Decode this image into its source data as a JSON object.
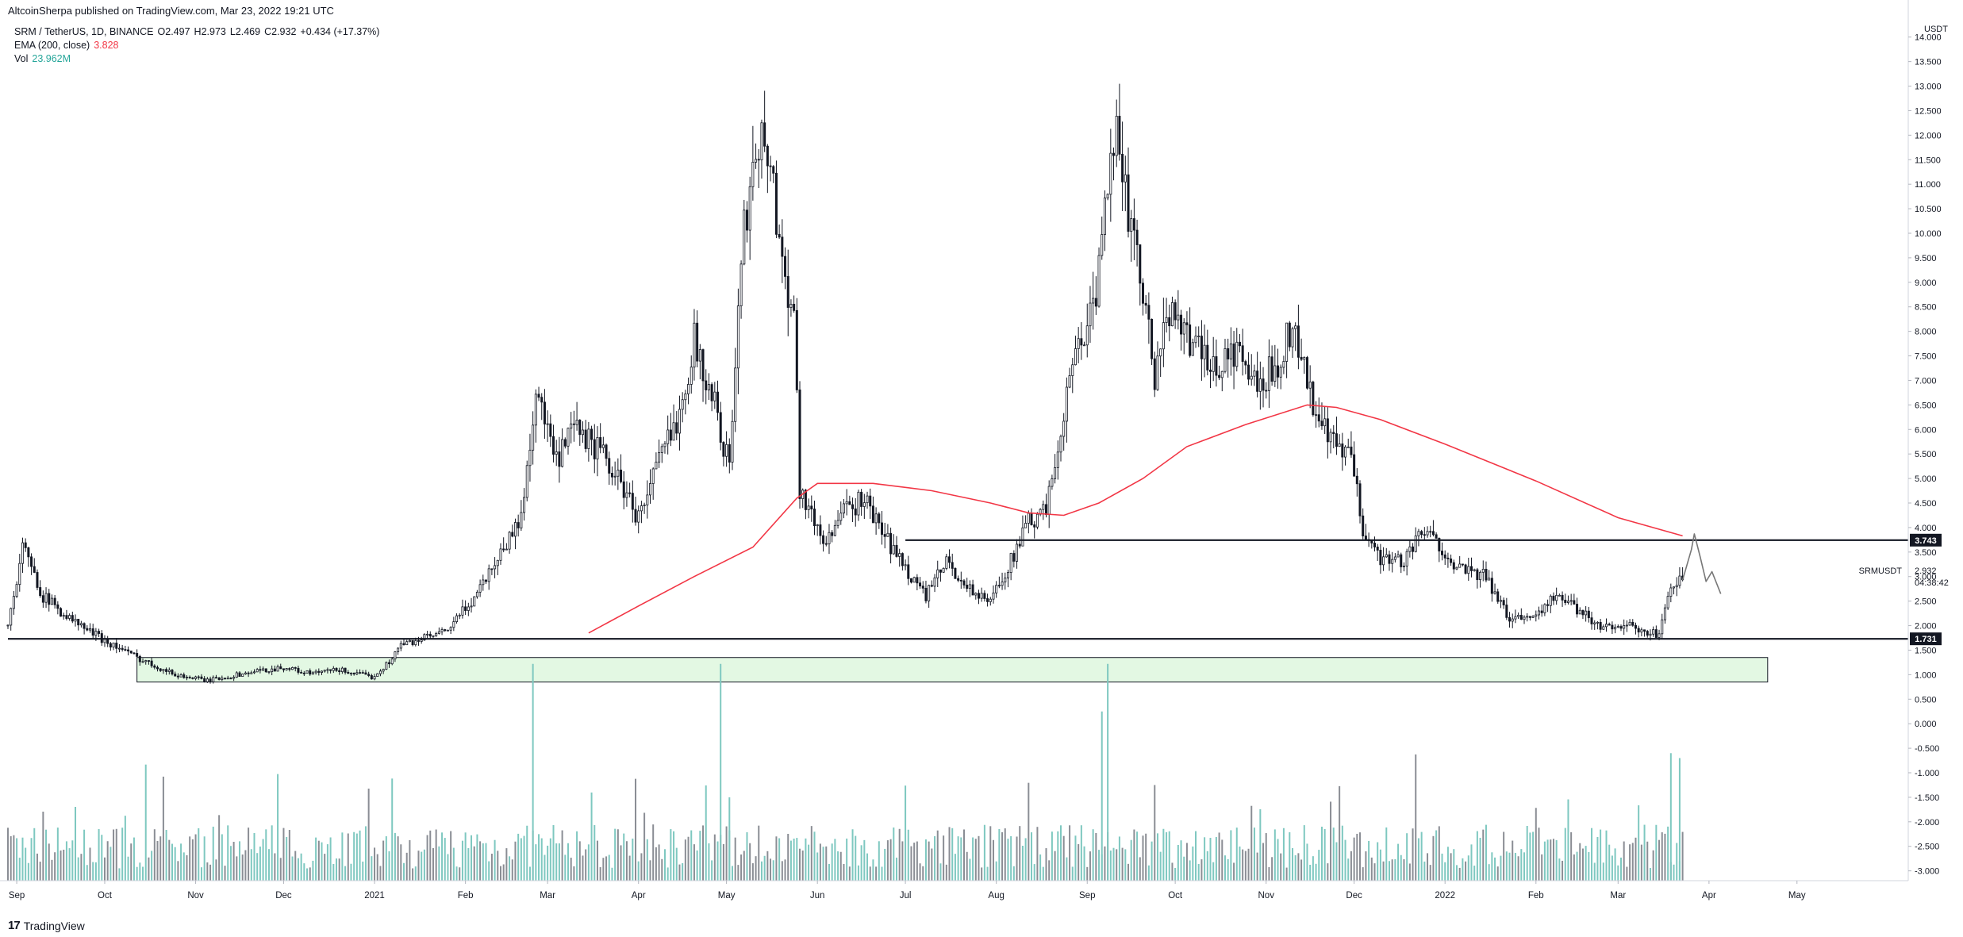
{
  "header": {
    "publish_line": "AltcoinSherpa published on TradingView.com, Mar 23, 2022 19:21 UTC"
  },
  "legend": {
    "symbol": "SRM / TetherUS, 1D, BINANCE",
    "open_label": "O",
    "open": "2.497",
    "high_label": "H",
    "high": "2.973",
    "low_label": "L",
    "low": "2.469",
    "close_label": "C",
    "close": "2.932",
    "change": "+0.434 (+17.37%)",
    "ema_label": "EMA (200, close)",
    "ema_value": "3.828",
    "vol_label": "Vol",
    "vol_value": "23.962M"
  },
  "footer": {
    "brand": "TradingView"
  },
  "colors": {
    "candle": "#131722",
    "ema": "#f23645",
    "volume_up": "#7ec8c0",
    "volume_down": "#8a8d94",
    "box_fill": "#e3f8e3",
    "projection": "#777777"
  },
  "chart_data": {
    "type": "candlestick",
    "symbol": "SRM / TetherUS, 1D, BINANCE",
    "yunit": "USDT",
    "ylim": [
      -3.2,
      14.4
    ],
    "y_ticks": [
      "14.000",
      "13.500",
      "13.000",
      "12.500",
      "12.000",
      "11.500",
      "11.000",
      "10.500",
      "10.000",
      "9.500",
      "9.000",
      "8.500",
      "8.000",
      "7.500",
      "7.000",
      "6.500",
      "6.000",
      "5.500",
      "5.000",
      "4.500",
      "4.000",
      "3.500",
      "3.000",
      "2.500",
      "2.000",
      "1.500",
      "1.000",
      "0.500",
      "0.000",
      "-0.500",
      "-1.000",
      "-1.500",
      "-2.000",
      "-2.500",
      "-3.000"
    ],
    "x_ticks": [
      {
        "label": "Sep",
        "date": "2020-09-01"
      },
      {
        "label": "Oct",
        "date": "2020-10-01"
      },
      {
        "label": "Nov",
        "date": "2020-11-01"
      },
      {
        "label": "Dec",
        "date": "2020-12-01"
      },
      {
        "label": "2021",
        "date": "2021-01-01"
      },
      {
        "label": "Feb",
        "date": "2021-02-01"
      },
      {
        "label": "Mar",
        "date": "2021-03-01"
      },
      {
        "label": "Apr",
        "date": "2021-04-01"
      },
      {
        "label": "May",
        "date": "2021-05-01"
      },
      {
        "label": "Jun",
        "date": "2021-06-01"
      },
      {
        "label": "Jul",
        "date": "2021-07-01"
      },
      {
        "label": "Aug",
        "date": "2021-08-01"
      },
      {
        "label": "Sep",
        "date": "2021-09-01"
      },
      {
        "label": "Oct",
        "date": "2021-10-01"
      },
      {
        "label": "Nov",
        "date": "2021-11-01"
      },
      {
        "label": "Dec",
        "date": "2021-12-01"
      },
      {
        "label": "2022",
        "date": "2022-01-01"
      },
      {
        "label": "Feb",
        "date": "2022-02-01"
      },
      {
        "label": "Mar",
        "date": "2022-03-01"
      },
      {
        "label": "Apr",
        "date": "2022-04-01"
      },
      {
        "label": "May",
        "date": "2022-05-01"
      }
    ],
    "price_path": [
      [
        "2020-08-29",
        2.0
      ],
      [
        "2020-09-03",
        3.6
      ],
      [
        "2020-09-10",
        2.6
      ],
      [
        "2020-09-20",
        2.1
      ],
      [
        "2020-10-01",
        1.7
      ],
      [
        "2020-10-12",
        1.35
      ],
      [
        "2020-10-25",
        1.0
      ],
      [
        "2020-11-05",
        0.88
      ],
      [
        "2020-11-20",
        1.05
      ],
      [
        "2020-12-01",
        1.15
      ],
      [
        "2020-12-10",
        1.02
      ],
      [
        "2020-12-20",
        1.1
      ],
      [
        "2020-12-31",
        0.95
      ],
      [
        "2021-01-05",
        1.2
      ],
      [
        "2021-01-10",
        1.6
      ],
      [
        "2021-01-18",
        1.75
      ],
      [
        "2021-01-25",
        1.85
      ],
      [
        "2021-02-03",
        2.5
      ],
      [
        "2021-02-12",
        3.4
      ],
      [
        "2021-02-20",
        4.2
      ],
      [
        "2021-02-25",
        6.8
      ],
      [
        "2021-03-04",
        5.3
      ],
      [
        "2021-03-10",
        6.0
      ],
      [
        "2021-03-18",
        5.6
      ],
      [
        "2021-03-25",
        5.0
      ],
      [
        "2021-04-01",
        4.2
      ],
      [
        "2021-04-07",
        5.2
      ],
      [
        "2021-04-14",
        6.2
      ],
      [
        "2021-04-20",
        7.8
      ],
      [
        "2021-04-27",
        6.5
      ],
      [
        "2021-05-02",
        5.2
      ],
      [
        "2021-05-06",
        9.5
      ],
      [
        "2021-05-11",
        12.0
      ],
      [
        "2021-05-16",
        11.5
      ],
      [
        "2021-05-20",
        9.3
      ],
      [
        "2021-05-24",
        8.5
      ],
      [
        "2021-05-26",
        4.8
      ],
      [
        "2021-06-03",
        3.7
      ],
      [
        "2021-06-10",
        4.3
      ],
      [
        "2021-06-17",
        4.6
      ],
      [
        "2021-06-24",
        3.8
      ],
      [
        "2021-07-02",
        3.1
      ],
      [
        "2021-07-08",
        2.6
      ],
      [
        "2021-07-15",
        3.3
      ],
      [
        "2021-07-22",
        2.8
      ],
      [
        "2021-07-29",
        2.45
      ],
      [
        "2021-08-05",
        3.2
      ],
      [
        "2021-08-12",
        4.1
      ],
      [
        "2021-08-18",
        4.3
      ],
      [
        "2021-08-24",
        6.4
      ],
      [
        "2021-08-29",
        7.8
      ],
      [
        "2021-09-04",
        8.6
      ],
      [
        "2021-09-08",
        10.8
      ],
      [
        "2021-09-11",
        12.8
      ],
      [
        "2021-09-15",
        10.2
      ],
      [
        "2021-09-20",
        8.8
      ],
      [
        "2021-09-24",
        7.0
      ],
      [
        "2021-09-30",
        8.7
      ],
      [
        "2021-10-06",
        7.8
      ],
      [
        "2021-10-14",
        7.2
      ],
      [
        "2021-10-22",
        7.6
      ],
      [
        "2021-10-29",
        6.8
      ],
      [
        "2021-11-05",
        7.4
      ],
      [
        "2021-11-10",
        8.2
      ],
      [
        "2021-11-16",
        6.7
      ],
      [
        "2021-11-22",
        5.8
      ],
      [
        "2021-11-30",
        5.4
      ],
      [
        "2021-12-04",
        4.0
      ],
      [
        "2021-12-10",
        3.4
      ],
      [
        "2021-12-17",
        3.3
      ],
      [
        "2021-12-25",
        3.9
      ],
      [
        "2021-12-31",
        3.6
      ],
      [
        "2022-01-07",
        3.1
      ],
      [
        "2022-01-15",
        3.0
      ],
      [
        "2022-01-22",
        2.2
      ],
      [
        "2022-01-29",
        2.15
      ],
      [
        "2022-02-08",
        2.6
      ],
      [
        "2022-02-16",
        2.3
      ],
      [
        "2022-02-24",
        1.95
      ],
      [
        "2022-03-03",
        2.05
      ],
      [
        "2022-03-10",
        1.82
      ],
      [
        "2022-03-15",
        1.85
      ],
      [
        "2022-03-19",
        2.8
      ],
      [
        "2022-03-23",
        2.93
      ]
    ],
    "ema_200": [
      [
        "2021-03-15",
        1.85
      ],
      [
        "2021-04-01",
        2.4
      ],
      [
        "2021-04-20",
        3.0
      ],
      [
        "2021-05-10",
        3.6
      ],
      [
        "2021-05-25",
        4.6
      ],
      [
        "2021-06-01",
        4.9
      ],
      [
        "2021-06-20",
        4.9
      ],
      [
        "2021-07-10",
        4.75
      ],
      [
        "2021-07-30",
        4.5
      ],
      [
        "2021-08-12",
        4.3
      ],
      [
        "2021-08-24",
        4.25
      ],
      [
        "2021-09-05",
        4.5
      ],
      [
        "2021-09-20",
        5.0
      ],
      [
        "2021-10-05",
        5.65
      ],
      [
        "2021-10-25",
        6.1
      ],
      [
        "2021-11-15",
        6.5
      ],
      [
        "2021-11-25",
        6.45
      ],
      [
        "2021-12-10",
        6.2
      ],
      [
        "2022-01-01",
        5.7
      ],
      [
        "2022-02-01",
        4.95
      ],
      [
        "2022-03-01",
        4.2
      ],
      [
        "2022-03-23",
        3.83
      ]
    ],
    "horizontal_lines": [
      {
        "value": 3.743,
        "label": "3.743",
        "from": "2021-07-01"
      },
      {
        "value": 1.731,
        "label": "1.731",
        "from": "2020-08-29"
      }
    ],
    "zone": {
      "from": "2020-10-12",
      "to": "2022-04-21",
      "low": 0.85,
      "high": 1.35
    },
    "projection": [
      [
        "2022-03-23",
        2.93
      ],
      [
        "2022-03-26",
        3.55
      ],
      [
        "2022-03-27",
        3.87
      ],
      [
        "2022-03-29",
        3.4
      ],
      [
        "2022-03-31",
        2.9
      ],
      [
        "2022-04-02",
        3.1
      ],
      [
        "2022-04-05",
        2.65
      ]
    ],
    "last_price": {
      "symbol": "SRMUSDT",
      "price": "2.932",
      "countdown": "04:38:42"
    },
    "volume_spikes": [
      [
        "2021-02-24",
        1.22
      ],
      [
        "2021-04-29",
        1.22
      ],
      [
        "2021-09-08",
        1.22
      ],
      [
        "2021-09-06",
        0.25
      ],
      [
        "2021-05-02",
        -1.5
      ],
      [
        "2022-03-19",
        -0.6
      ],
      [
        "2022-03-22",
        -0.7
      ]
    ]
  }
}
